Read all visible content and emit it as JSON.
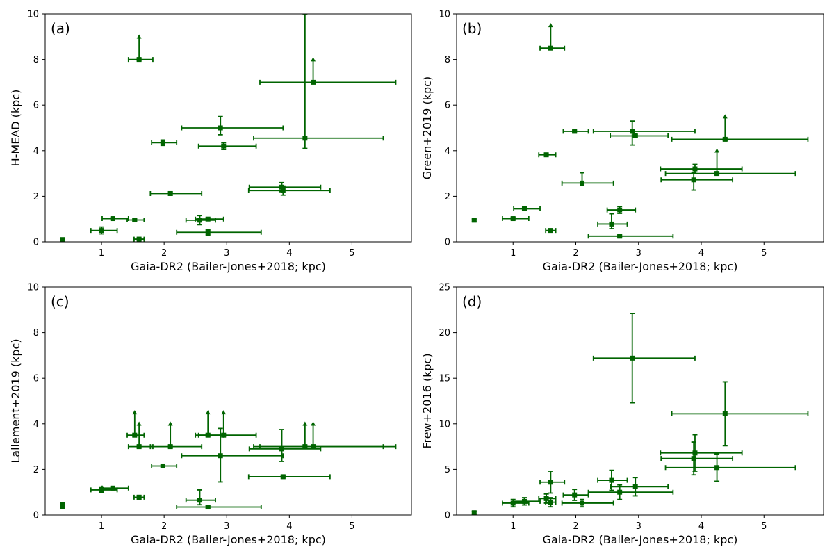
{
  "colors": {
    "series": "#006400",
    "axes": "#000000",
    "background": "#ffffff"
  },
  "chart_data": [
    {
      "type": "scatter",
      "panel_label": "(a)",
      "xlabel": "Gaia-DR2 (Bailer-Jones+2018; kpc)",
      "ylabel": "H-MEAD (kpc)",
      "xlim": [
        0.1,
        5.95
      ],
      "ylim": [
        0,
        10
      ],
      "xticks": [
        1,
        2,
        3,
        4,
        5
      ],
      "yticks": [
        0,
        2,
        4,
        6,
        8,
        10
      ],
      "points": [
        {
          "x": 0.38,
          "y": 0.1,
          "xerr": [
            0,
            0
          ],
          "yerr": [
            0.03,
            0.03
          ],
          "lower_limit": false
        },
        {
          "x": 1.0,
          "y": 0.5,
          "xerr": [
            0.17,
            0.25
          ],
          "yerr": [
            0.15,
            0.15
          ],
          "lower_limit": false
        },
        {
          "x": 1.18,
          "y": 1.02,
          "xerr": [
            0.17,
            0.25
          ],
          "yerr": [
            0.05,
            0.05
          ],
          "lower_limit": false
        },
        {
          "x": 1.6,
          "y": 0.12,
          "xerr": [
            0.08,
            0.08
          ],
          "yerr": [
            0.05,
            0.05
          ],
          "lower_limit": false
        },
        {
          "x": 1.53,
          "y": 0.96,
          "xerr": [
            0.12,
            0.15
          ],
          "yerr": [
            0.05,
            0.05
          ],
          "lower_limit": false
        },
        {
          "x": 1.6,
          "y": 8.0,
          "xerr": [
            0.17,
            0.22
          ],
          "yerr": [
            0.05,
            0.05
          ],
          "lower_limit": true,
          "arrow_to": 9.1
        },
        {
          "x": 1.98,
          "y": 4.35,
          "xerr": [
            0.18,
            0.22
          ],
          "yerr": [
            0.12,
            0.12
          ],
          "lower_limit": false
        },
        {
          "x": 2.1,
          "y": 2.12,
          "xerr": [
            0.32,
            0.5
          ],
          "yerr": [
            0.07,
            0.07
          ],
          "lower_limit": false
        },
        {
          "x": 2.57,
          "y": 0.95,
          "xerr": [
            0.22,
            0.25
          ],
          "yerr": [
            0.2,
            0.2
          ],
          "lower_limit": false
        },
        {
          "x": 2.7,
          "y": 1.0,
          "xerr": [
            0.2,
            0.25
          ],
          "yerr": [
            0.05,
            0.05
          ],
          "lower_limit": false
        },
        {
          "x": 2.7,
          "y": 0.42,
          "xerr": [
            0.5,
            0.85
          ],
          "yerr": [
            0.12,
            0.12
          ],
          "lower_limit": false
        },
        {
          "x": 2.9,
          "y": 5.0,
          "xerr": [
            0.62,
            1.0
          ],
          "yerr": [
            0.3,
            0.5
          ],
          "lower_limit": false
        },
        {
          "x": 2.95,
          "y": 4.2,
          "xerr": [
            0.4,
            0.52
          ],
          "yerr": [
            0.15,
            0.15
          ],
          "lower_limit": false
        },
        {
          "x": 3.88,
          "y": 2.4,
          "xerr": [
            0.52,
            0.62
          ],
          "yerr": [
            0.2,
            0.2
          ],
          "lower_limit": false
        },
        {
          "x": 3.9,
          "y": 2.25,
          "xerr": [
            0.55,
            0.75
          ],
          "yerr": [
            0.2,
            0.2
          ],
          "lower_limit": false
        },
        {
          "x": 4.25,
          "y": 4.55,
          "xerr": [
            0.82,
            1.25
          ],
          "yerr": [
            0.45,
            5.45
          ],
          "lower_limit": false
        },
        {
          "x": 4.38,
          "y": 7.0,
          "xerr": [
            0.85,
            1.32
          ],
          "yerr": [
            0.05,
            0.05
          ],
          "lower_limit": true,
          "arrow_to": 8.1
        }
      ]
    },
    {
      "type": "scatter",
      "panel_label": "(b)",
      "xlabel": "Gaia-DR2 (Bailer-Jones+2018; kpc)",
      "ylabel": "Green+2019 (kpc)",
      "xlim": [
        0.1,
        5.95
      ],
      "ylim": [
        0,
        10
      ],
      "xticks": [
        1,
        2,
        3,
        4,
        5
      ],
      "yticks": [
        0,
        2,
        4,
        6,
        8,
        10
      ],
      "points": [
        {
          "x": 0.38,
          "y": 0.95,
          "xerr": [
            0,
            0
          ],
          "yerr": [
            0.05,
            0.05
          ],
          "lower_limit": false
        },
        {
          "x": 1.0,
          "y": 1.02,
          "xerr": [
            0.17,
            0.25
          ],
          "yerr": [
            0.05,
            0.05
          ],
          "lower_limit": false
        },
        {
          "x": 1.18,
          "y": 1.45,
          "xerr": [
            0.17,
            0.25
          ],
          "yerr": [
            0.05,
            0.05
          ],
          "lower_limit": false
        },
        {
          "x": 1.53,
          "y": 3.82,
          "xerr": [
            0.12,
            0.15
          ],
          "yerr": [
            0.05,
            0.05
          ],
          "lower_limit": false
        },
        {
          "x": 1.6,
          "y": 0.5,
          "xerr": [
            0.08,
            0.08
          ],
          "yerr": [
            0.05,
            0.05
          ],
          "lower_limit": false
        },
        {
          "x": 1.6,
          "y": 8.5,
          "xerr": [
            0.17,
            0.22
          ],
          "yerr": [
            0.05,
            0.05
          ],
          "lower_limit": true,
          "arrow_to": 9.6
        },
        {
          "x": 1.98,
          "y": 4.85,
          "xerr": [
            0.18,
            0.22
          ],
          "yerr": [
            0.05,
            0.05
          ],
          "lower_limit": false
        },
        {
          "x": 2.1,
          "y": 2.58,
          "xerr": [
            0.32,
            0.5
          ],
          "yerr": [
            0.1,
            0.45
          ],
          "lower_limit": false
        },
        {
          "x": 2.57,
          "y": 0.78,
          "xerr": [
            0.22,
            0.25
          ],
          "yerr": [
            0.2,
            0.45
          ],
          "lower_limit": false
        },
        {
          "x": 2.7,
          "y": 1.4,
          "xerr": [
            0.2,
            0.25
          ],
          "yerr": [
            0.15,
            0.15
          ],
          "lower_limit": false
        },
        {
          "x": 2.7,
          "y": 0.25,
          "xerr": [
            0.5,
            0.85
          ],
          "yerr": [
            0.05,
            0.05
          ],
          "lower_limit": false
        },
        {
          "x": 2.9,
          "y": 4.85,
          "xerr": [
            0.62,
            1.0
          ],
          "yerr": [
            0.6,
            0.45
          ],
          "lower_limit": false
        },
        {
          "x": 2.95,
          "y": 4.65,
          "xerr": [
            0.4,
            0.52
          ],
          "yerr": [
            0.05,
            0.05
          ],
          "lower_limit": false
        },
        {
          "x": 3.88,
          "y": 2.72,
          "xerr": [
            0.52,
            0.62
          ],
          "yerr": [
            0.45,
            0.3
          ],
          "lower_limit": false
        },
        {
          "x": 3.9,
          "y": 3.2,
          "xerr": [
            0.55,
            0.75
          ],
          "yerr": [
            0.2,
            0.2
          ],
          "lower_limit": false
        },
        {
          "x": 4.25,
          "y": 3.0,
          "xerr": [
            0.82,
            1.25
          ],
          "yerr": [
            0.05,
            0.05
          ],
          "lower_limit": true,
          "arrow_to": 4.1
        },
        {
          "x": 4.38,
          "y": 4.5,
          "xerr": [
            0.85,
            1.32
          ],
          "yerr": [
            0.05,
            0.05
          ],
          "lower_limit": true,
          "arrow_to": 5.6
        }
      ]
    },
    {
      "type": "scatter",
      "panel_label": "(c)",
      "xlabel": "Gaia-DR2 (Bailer-Jones+2018; kpc)",
      "ylabel": "Lallement+2019 (kpc)",
      "xlim": [
        0.1,
        5.95
      ],
      "ylim": [
        0,
        10
      ],
      "xticks": [
        1,
        2,
        3,
        4,
        5
      ],
      "yticks": [
        0,
        2,
        4,
        6,
        8,
        10
      ],
      "points": [
        {
          "x": 0.38,
          "y": 0.4,
          "xerr": [
            0,
            0
          ],
          "yerr": [
            0.12,
            0.12
          ],
          "lower_limit": false
        },
        {
          "x": 1.0,
          "y": 1.1,
          "xerr": [
            0.17,
            0.25
          ],
          "yerr": [
            0.1,
            0.1
          ],
          "lower_limit": false
        },
        {
          "x": 1.18,
          "y": 1.18,
          "xerr": [
            0.17,
            0.25
          ],
          "yerr": [
            0.05,
            0.05
          ],
          "lower_limit": false
        },
        {
          "x": 1.53,
          "y": 3.5,
          "xerr": [
            0.12,
            0.15
          ],
          "yerr": [
            0.05,
            0.05
          ],
          "lower_limit": true,
          "arrow_to": 4.6
        },
        {
          "x": 1.6,
          "y": 3.0,
          "xerr": [
            0.17,
            0.22
          ],
          "yerr": [
            0.05,
            0.05
          ],
          "lower_limit": true,
          "arrow_to": 4.1
        },
        {
          "x": 1.6,
          "y": 0.78,
          "xerr": [
            0.08,
            0.08
          ],
          "yerr": [
            0.08,
            0.08
          ],
          "lower_limit": false
        },
        {
          "x": 1.98,
          "y": 2.15,
          "xerr": [
            0.18,
            0.22
          ],
          "yerr": [
            0.05,
            0.05
          ],
          "lower_limit": false
        },
        {
          "x": 2.1,
          "y": 3.0,
          "xerr": [
            0.32,
            0.5
          ],
          "yerr": [
            0.05,
            0.05
          ],
          "lower_limit": true,
          "arrow_to": 4.1
        },
        {
          "x": 2.57,
          "y": 0.65,
          "xerr": [
            0.22,
            0.25
          ],
          "yerr": [
            0.2,
            0.45
          ],
          "lower_limit": false
        },
        {
          "x": 2.7,
          "y": 0.35,
          "xerr": [
            0.5,
            0.85
          ],
          "yerr": [
            0.05,
            0.05
          ],
          "lower_limit": false
        },
        {
          "x": 2.7,
          "y": 3.5,
          "xerr": [
            0.2,
            0.25
          ],
          "yerr": [
            0.05,
            0.05
          ],
          "lower_limit": true,
          "arrow_to": 4.6
        },
        {
          "x": 2.9,
          "y": 2.6,
          "xerr": [
            0.62,
            1.0
          ],
          "yerr": [
            1.15,
            1.2
          ],
          "lower_limit": false
        },
        {
          "x": 2.95,
          "y": 3.5,
          "xerr": [
            0.4,
            0.52
          ],
          "yerr": [
            0.05,
            0.05
          ],
          "lower_limit": true,
          "arrow_to": 4.6
        },
        {
          "x": 3.88,
          "y": 2.9,
          "xerr": [
            0.52,
            0.62
          ],
          "yerr": [
            0.55,
            0.85
          ],
          "lower_limit": false
        },
        {
          "x": 3.9,
          "y": 1.68,
          "xerr": [
            0.55,
            0.75
          ],
          "yerr": [
            0.05,
            0.05
          ],
          "lower_limit": false
        },
        {
          "x": 4.25,
          "y": 3.0,
          "xerr": [
            0.82,
            1.25
          ],
          "yerr": [
            0.05,
            0.05
          ],
          "lower_limit": true,
          "arrow_to": 4.1
        },
        {
          "x": 4.38,
          "y": 3.0,
          "xerr": [
            0.85,
            1.32
          ],
          "yerr": [
            0.05,
            0.05
          ],
          "lower_limit": true,
          "arrow_to": 4.1
        }
      ]
    },
    {
      "type": "scatter",
      "panel_label": "(d)",
      "xlabel": "Gaia-DR2 (Bailer-Jones+2018; kpc)",
      "ylabel": "Frew+2016 (kpc)",
      "xlim": [
        0.1,
        5.95
      ],
      "ylim": [
        0,
        25
      ],
      "xticks": [
        1,
        2,
        3,
        4,
        5
      ],
      "yticks": [
        0,
        5,
        10,
        15,
        20,
        25
      ],
      "points": [
        {
          "x": 0.38,
          "y": 0.25,
          "xerr": [
            0,
            0
          ],
          "yerr": [
            0.15,
            0.15
          ],
          "lower_limit": false
        },
        {
          "x": 1.0,
          "y": 1.3,
          "xerr": [
            0.17,
            0.25
          ],
          "yerr": [
            0.4,
            0.4
          ],
          "lower_limit": false
        },
        {
          "x": 1.18,
          "y": 1.5,
          "xerr": [
            0.17,
            0.25
          ],
          "yerr": [
            0.4,
            0.4
          ],
          "lower_limit": false
        },
        {
          "x": 1.53,
          "y": 1.8,
          "xerr": [
            0.12,
            0.15
          ],
          "yerr": [
            0.5,
            0.5
          ],
          "lower_limit": false
        },
        {
          "x": 1.6,
          "y": 1.4,
          "xerr": [
            0.08,
            0.08
          ],
          "yerr": [
            0.5,
            0.5
          ],
          "lower_limit": false
        },
        {
          "x": 1.6,
          "y": 3.6,
          "xerr": [
            0.17,
            0.22
          ],
          "yerr": [
            1.2,
            1.2
          ],
          "lower_limit": false
        },
        {
          "x": 1.98,
          "y": 2.2,
          "xerr": [
            0.18,
            0.22
          ],
          "yerr": [
            0.6,
            0.6
          ],
          "lower_limit": false
        },
        {
          "x": 2.1,
          "y": 1.3,
          "xerr": [
            0.32,
            0.5
          ],
          "yerr": [
            0.4,
            0.4
          ],
          "lower_limit": false
        },
        {
          "x": 2.57,
          "y": 3.8,
          "xerr": [
            0.22,
            0.25
          ],
          "yerr": [
            1.1,
            1.1
          ],
          "lower_limit": false
        },
        {
          "x": 2.7,
          "y": 2.5,
          "xerr": [
            0.5,
            0.85
          ],
          "yerr": [
            0.8,
            0.8
          ],
          "lower_limit": false
        },
        {
          "x": 2.9,
          "y": 17.2,
          "xerr": [
            0.62,
            1.0
          ],
          "yerr": [
            4.9,
            4.9
          ],
          "lower_limit": false
        },
        {
          "x": 2.95,
          "y": 3.1,
          "xerr": [
            0.4,
            0.52
          ],
          "yerr": [
            1.0,
            1.0
          ],
          "lower_limit": false
        },
        {
          "x": 3.88,
          "y": 6.2,
          "xerr": [
            0.52,
            0.62
          ],
          "yerr": [
            1.8,
            1.8
          ],
          "lower_limit": false
        },
        {
          "x": 3.9,
          "y": 6.8,
          "xerr": [
            0.55,
            0.75
          ],
          "yerr": [
            2.0,
            2.0
          ],
          "lower_limit": false
        },
        {
          "x": 4.25,
          "y": 5.2,
          "xerr": [
            0.82,
            1.25
          ],
          "yerr": [
            1.5,
            1.5
          ],
          "lower_limit": false
        },
        {
          "x": 4.38,
          "y": 11.1,
          "xerr": [
            0.85,
            1.32
          ],
          "yerr": [
            3.5,
            3.5
          ],
          "lower_limit": false
        }
      ]
    }
  ]
}
